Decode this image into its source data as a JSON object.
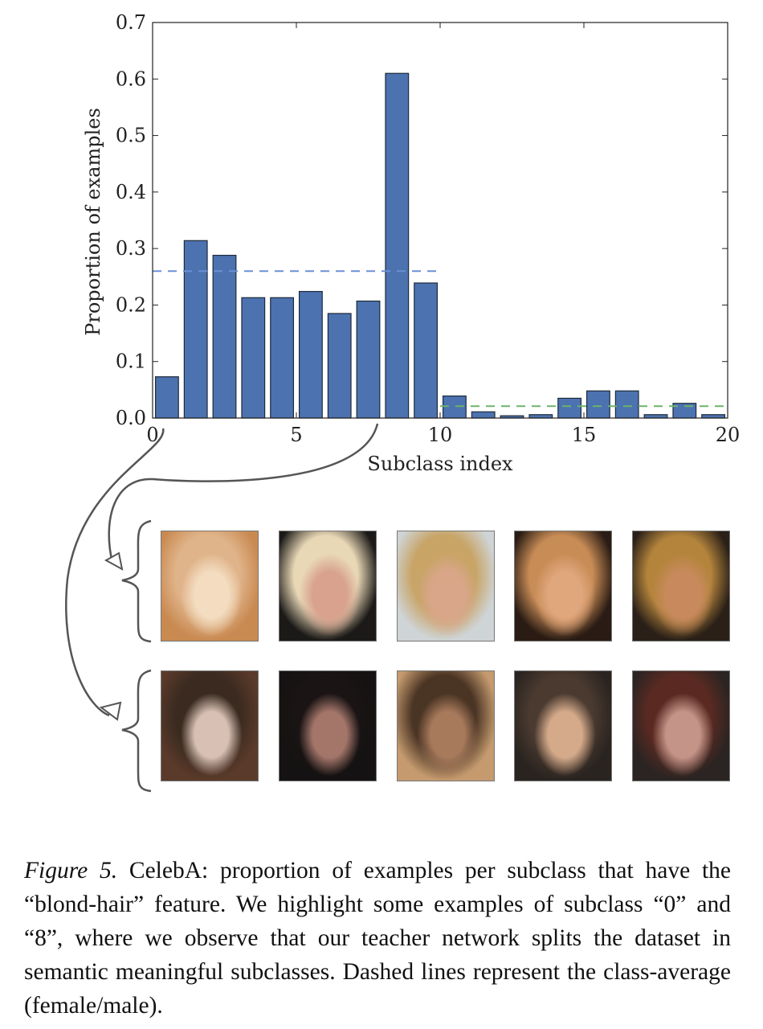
{
  "chart_data": {
    "type": "bar",
    "xlabel": "Subclass index",
    "ylabel": "Proportion of examples",
    "xlim": [
      0,
      20
    ],
    "ylim": [
      0,
      0.7
    ],
    "xticks": [
      0,
      5,
      10,
      15,
      20
    ],
    "yticks": [
      0.0,
      0.1,
      0.2,
      0.3,
      0.4,
      0.5,
      0.6,
      0.7
    ],
    "x": [
      0,
      1,
      2,
      3,
      4,
      5,
      6,
      7,
      8,
      9,
      10,
      11,
      12,
      13,
      14,
      15,
      16,
      17,
      18,
      19
    ],
    "values": [
      0.073,
      0.314,
      0.288,
      0.213,
      0.213,
      0.224,
      0.185,
      0.207,
      0.61,
      0.239,
      0.039,
      0.011,
      0.004,
      0.006,
      0.035,
      0.048,
      0.048,
      0.006,
      0.026,
      0.006
    ],
    "reference_lines": [
      {
        "y": 0.26,
        "x_range": [
          0,
          10
        ],
        "color": "#6b8fd6"
      },
      {
        "y": 0.021,
        "x_range": [
          10,
          20
        ],
        "color": "#6ab46a"
      }
    ],
    "bar_color": "#4c72b0",
    "grid": false,
    "legend": "none"
  },
  "caption": {
    "label": "Figure 5.",
    "text": "CelebA: proportion of examples per subclass that have the “blond-hair” feature. We highlight some examples of subclass “0” and “8”, where we observe that our teacher network splits the dataset in semantic meaningful subclasses. Dashed lines represent the class-average (female/male)."
  },
  "image_groups": [
    {
      "subclass": 8,
      "images": [
        {
          "icon": "blonde-face-thumbnail",
          "colors": [
            "#e0b48a",
            "#c98a52",
            "#f3dcc0"
          ]
        },
        {
          "icon": "blonde-face-thumbnail",
          "colors": [
            "#e9d8b6",
            "#1c1a18",
            "#d8a28e"
          ]
        },
        {
          "icon": "blonde-face-thumbnail",
          "colors": [
            "#c8a466",
            "#cfd4d6",
            "#d9a68a"
          ]
        },
        {
          "icon": "blonde-face-thumbnail",
          "colors": [
            "#c88c56",
            "#2a1c14",
            "#e0a67c"
          ]
        },
        {
          "icon": "blonde-face-thumbnail",
          "colors": [
            "#b4843c",
            "#2a2018",
            "#c88a5c"
          ]
        }
      ]
    },
    {
      "subclass": 0,
      "images": [
        {
          "icon": "dark-hair-face-thumbnail",
          "colors": [
            "#3a2a20",
            "#5a3a2a",
            "#d8c0b4"
          ]
        },
        {
          "icon": "dark-hair-face-thumbnail",
          "colors": [
            "#1a1414",
            "#141212",
            "#a4766a"
          ]
        },
        {
          "icon": "dark-hair-face-thumbnail",
          "colors": [
            "#4a3424",
            "#c49a6e",
            "#a87a5c"
          ]
        },
        {
          "icon": "dark-hair-face-thumbnail",
          "colors": [
            "#4a3a30",
            "#2a2420",
            "#d4aa8a"
          ]
        },
        {
          "icon": "dark-hair-face-thumbnail",
          "colors": [
            "#5a2a22",
            "#2a2422",
            "#c49488"
          ]
        }
      ]
    }
  ]
}
